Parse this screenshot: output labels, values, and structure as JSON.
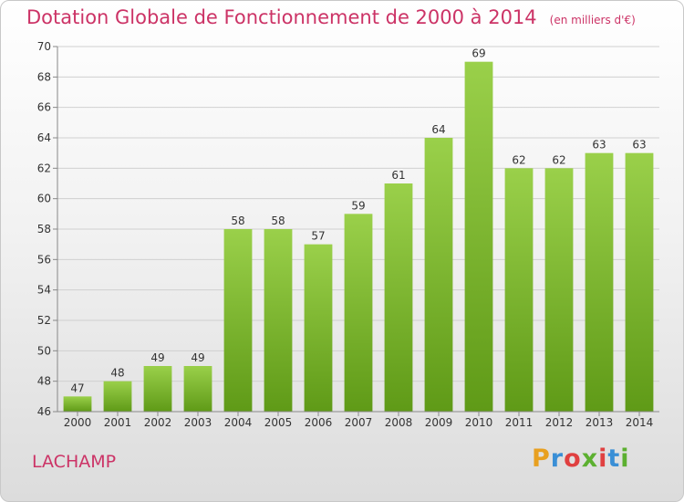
{
  "header": {
    "title": "Dotation Globale de Fonctionnement de 2000 à 2014",
    "unit": "(en milliers d'€)"
  },
  "footer": {
    "commune": "LACHAMP",
    "logo": "Proxiti"
  },
  "colors": {
    "title": "#cc3366",
    "bar_top": "#9ad04a",
    "bar_bottom": "#5f9a17",
    "logo_letters": [
      "#e8a020",
      "#3a8fd6",
      "#e04040",
      "#5cb030",
      "#e04040",
      "#3a8fd6",
      "#5cb030"
    ]
  },
  "chart_data": {
    "type": "bar",
    "title": "Dotation Globale de Fonctionnement de 2000 à 2014",
    "subtitle": "(en milliers d'€)",
    "xlabel": "",
    "ylabel": "",
    "categories": [
      "2000",
      "2001",
      "2002",
      "2003",
      "2004",
      "2005",
      "2006",
      "2007",
      "2008",
      "2009",
      "2010",
      "2011",
      "2012",
      "2013",
      "2014"
    ],
    "values": [
      47,
      48,
      49,
      49,
      58,
      58,
      57,
      59,
      61,
      64,
      69,
      62,
      62,
      63,
      63
    ],
    "ylim": [
      46,
      70
    ],
    "yticks": [
      46,
      48,
      50,
      52,
      54,
      56,
      58,
      60,
      62,
      64,
      66,
      68,
      70
    ],
    "grid": true,
    "legend": "none"
  }
}
